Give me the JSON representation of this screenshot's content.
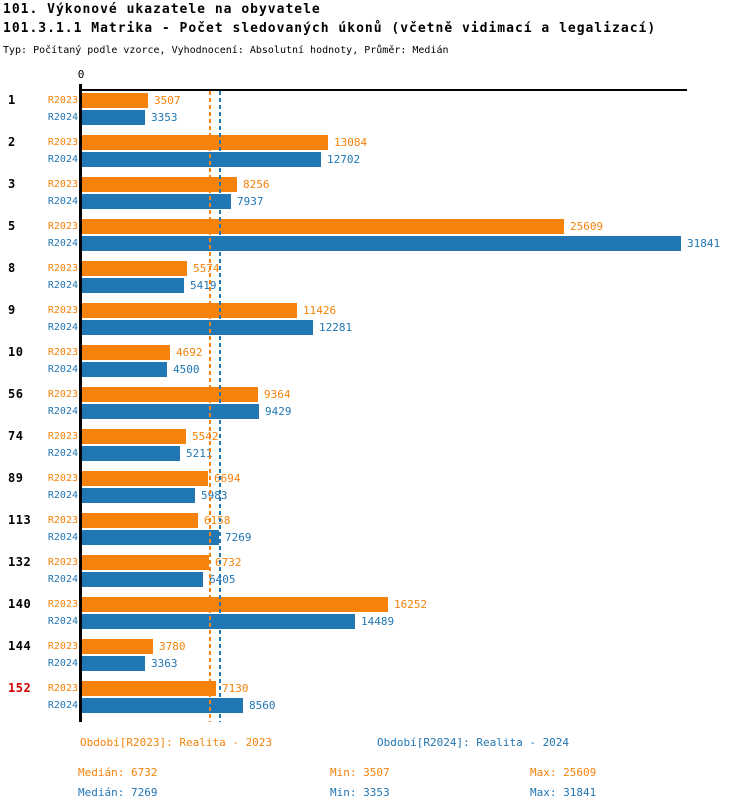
{
  "page": {
    "title1": "101. Výkonové ukazatele na obyvatele",
    "title2": "101.3.1.1 Matrika - Počet sledovaných úkonů (včetně vidimací a legalizací)",
    "subtitle": "Typ: Počítaný podle vzorce, Vyhodnocení: Absolutní hodnoty, Průměr: Medián"
  },
  "colors": {
    "r2023": "#F5820B",
    "r2024": "#2176B4",
    "highlight_row": "#D40000",
    "axis": "#000000"
  },
  "axis": {
    "origin_label": "0"
  },
  "chart_data": {
    "type": "bar",
    "orientation": "horizontal",
    "title": "101.3.1.1 Matrika - Počet sledovaných úkonů (včetně vidimací a legalizací)",
    "categories": [
      "1",
      "2",
      "3",
      "5",
      "8",
      "9",
      "10",
      "56",
      "74",
      "89",
      "113",
      "132",
      "140",
      "144",
      "152"
    ],
    "highlighted_category": "152",
    "series": [
      {
        "name": "R2023",
        "color": "#F5820B",
        "values": [
          3507,
          13084,
          8256,
          25609,
          5574,
          11426,
          4692,
          9364,
          5542,
          6694,
          6158,
          6732,
          16252,
          3780,
          7130
        ]
      },
      {
        "name": "R2024",
        "color": "#2176B4",
        "values": [
          3353,
          12702,
          7937,
          31841,
          5419,
          12281,
          4500,
          9429,
          5211,
          5983,
          7269,
          6405,
          14489,
          3363,
          8560
        ]
      }
    ],
    "median_lines": [
      {
        "series": "R2023",
        "value": 6732
      },
      {
        "series": "R2024",
        "value": 7269
      }
    ],
    "xlim": [
      0,
      32250
    ],
    "grid": "off",
    "legend_position": "bottom"
  },
  "legend": {
    "r2023": "Období[R2023]: Realita - 2023",
    "r2024": "Období[R2024]: Realita - 2024"
  },
  "stats": {
    "r2023": {
      "median": "Medián: 6732",
      "min": "Min: 3507",
      "max": "Max: 25609"
    },
    "r2024": {
      "median": "Medián: 7269",
      "min": "Min: 3353",
      "max": "Max: 31841"
    }
  }
}
